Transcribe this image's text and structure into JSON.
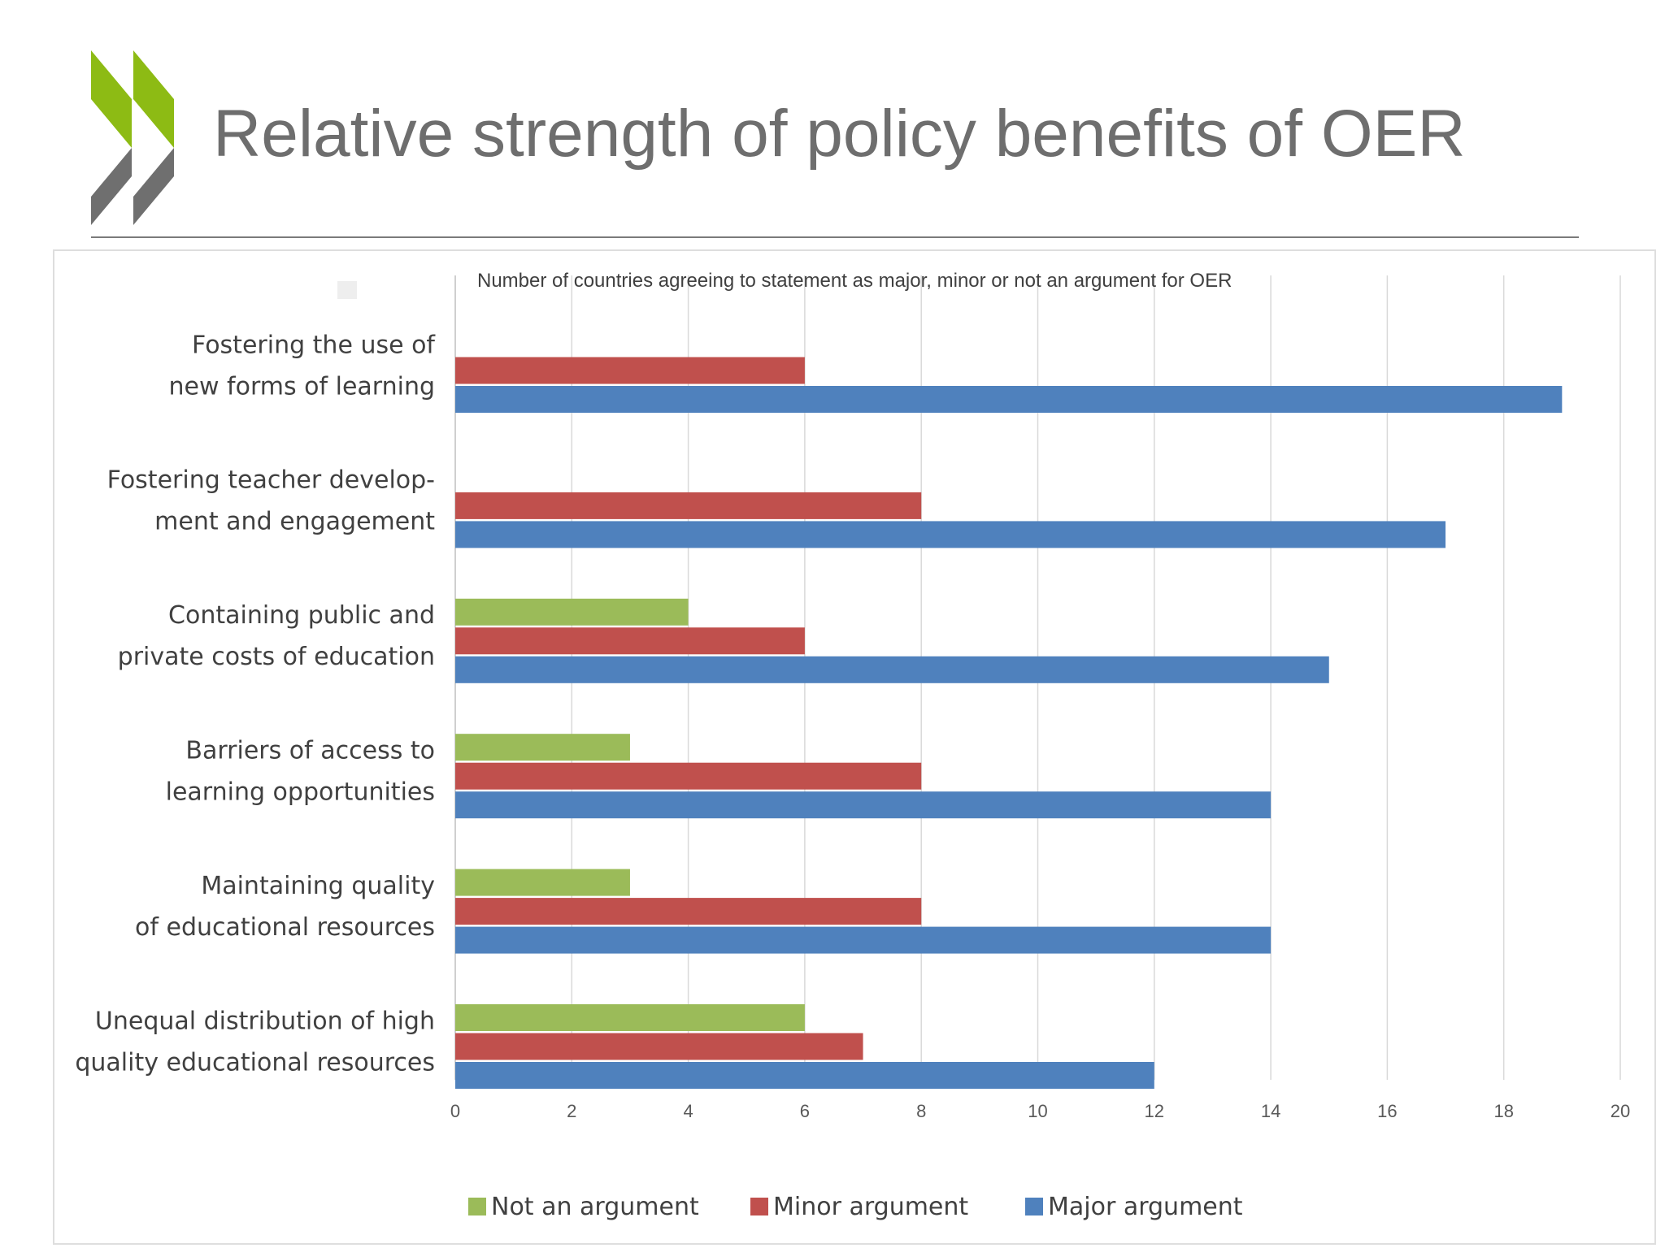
{
  "slide": {
    "title": "Relative strength of policy benefits of OER",
    "logo_icon": "oecd-double-chevron-logo"
  },
  "colors": {
    "logo_green": "#8dbb14",
    "logo_gray": "#6f6f6f",
    "not_an_argument": "#9bbb59",
    "minor_argument": "#c0504d",
    "major_argument": "#4f81bd",
    "grid": "#d9d9d9",
    "text": "#404040"
  },
  "chart_data": {
    "type": "bar",
    "orientation": "horizontal",
    "title": "Number of countries agreeing to statement as major, minor or not an argument for OER",
    "categories": [
      [
        "Fostering the use of",
        "new forms of learning"
      ],
      [
        "Fostering teacher develop-",
        "ment and engagement"
      ],
      [
        "Containing public and",
        "private costs of education"
      ],
      [
        "Barriers of access to",
        "learning opportunities"
      ],
      [
        "Maintaining quality",
        "of educational resources"
      ],
      [
        "Unequal distribution of high",
        "quality educational resources"
      ]
    ],
    "series": [
      {
        "name": "Not an argument",
        "color": "#9bbb59",
        "values": [
          0,
          0,
          4,
          3,
          3,
          6
        ]
      },
      {
        "name": "Minor argument",
        "color": "#c0504d",
        "values": [
          6,
          8,
          6,
          8,
          8,
          7
        ]
      },
      {
        "name": "Major argument",
        "color": "#4f81bd",
        "values": [
          19,
          17,
          15,
          14,
          14,
          12
        ]
      }
    ],
    "xlim": [
      0,
      20
    ],
    "xticks": [
      0,
      2,
      4,
      6,
      8,
      10,
      12,
      14,
      16,
      18,
      20
    ],
    "grid": "vertical",
    "legend": "bottom"
  }
}
